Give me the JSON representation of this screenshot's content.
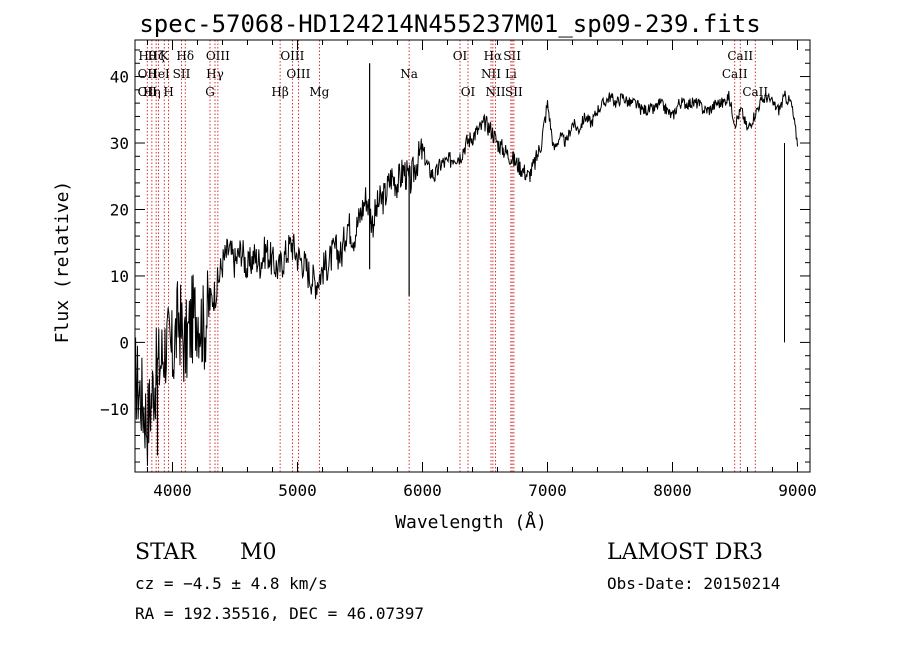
{
  "chart_data": {
    "type": "line",
    "title": "spec-57068-HD124214N455237M01_sp09-239.fits",
    "xlabel": "Wavelength (Å)",
    "ylabel": "Flux (relative)",
    "xlim": [
      3700,
      9100
    ],
    "ylim": [
      -19.5,
      45.5
    ],
    "x_ticks": [
      4000,
      5000,
      6000,
      7000,
      8000,
      9000
    ],
    "x_tick_labels": [
      "4000",
      "5000",
      "6000",
      "7000",
      "8000",
      "9000"
    ],
    "y_ticks": [
      -10,
      0,
      10,
      20,
      30,
      40
    ],
    "y_tick_labels": [
      "−10",
      "0",
      "10",
      "20",
      "30",
      "40"
    ],
    "series": [
      {
        "name": "flux",
        "x": [
          3700,
          3750,
          3800,
          3850,
          3900,
          3950,
          4000,
          4050,
          4100,
          4150,
          4200,
          4250,
          4300,
          4350,
          4400,
          4450,
          4500,
          4550,
          4600,
          4650,
          4700,
          4750,
          4800,
          4850,
          4900,
          4950,
          5000,
          5050,
          5100,
          5150,
          5200,
          5250,
          5300,
          5350,
          5400,
          5450,
          5500,
          5550,
          5600,
          5650,
          5700,
          5750,
          5800,
          5850,
          5900,
          5950,
          6000,
          6050,
          6100,
          6150,
          6200,
          6250,
          6300,
          6350,
          6400,
          6450,
          6500,
          6550,
          6600,
          6650,
          6700,
          6750,
          6800,
          6850,
          6900,
          6950,
          7000,
          7050,
          7100,
          7150,
          7200,
          7250,
          7300,
          7350,
          7400,
          7450,
          7500,
          7550,
          7600,
          7650,
          7700,
          7750,
          7800,
          7850,
          7900,
          7950,
          8000,
          8050,
          8100,
          8150,
          8200,
          8250,
          8300,
          8350,
          8400,
          8450,
          8500,
          8550,
          8600,
          8650,
          8700,
          8750,
          8800,
          8850,
          8900,
          8950,
          9000
        ],
        "y": [
          -5,
          -8,
          -12,
          -6,
          -3,
          0,
          -2,
          4,
          -1,
          3,
          5,
          2,
          6,
          8,
          12,
          14,
          12,
          14,
          11,
          13,
          12,
          14,
          12,
          11,
          13,
          15,
          13,
          12,
          10,
          9,
          11,
          12,
          14,
          13,
          18,
          16,
          19,
          22,
          18,
          21,
          22,
          25,
          24,
          26,
          24,
          27,
          29,
          26,
          25,
          27,
          27,
          28,
          28,
          30,
          31,
          32,
          33,
          32,
          30,
          29,
          28,
          27,
          26,
          25,
          27,
          30,
          36,
          29,
          31,
          30,
          33,
          32,
          34,
          33,
          35,
          36,
          37,
          36,
          37,
          36,
          36,
          35,
          35,
          35,
          36,
          35,
          34,
          36,
          36,
          36,
          36,
          35,
          35,
          36,
          36,
          37,
          33,
          35,
          32,
          34,
          36,
          37,
          36,
          35,
          37,
          36,
          30
        ]
      }
    ],
    "spikes": [
      {
        "x": 5577,
        "y1": 11,
        "y2": 42
      },
      {
        "x": 5893,
        "y1": 7,
        "y2": 26
      },
      {
        "x": 3880,
        "y1": -17,
        "y2": -5
      }
    ],
    "line_markers": [
      {
        "x": 3798,
        "labels": [
          "Hθ",
          "OII",
          "OII"
        ],
        "rows": [
          1,
          2,
          3
        ]
      },
      {
        "x": 3835,
        "labels": [
          "Hη"
        ],
        "rows": [
          3
        ]
      },
      {
        "x": 3869,
        "labels": [
          "Hζ"
        ],
        "rows": [
          1
        ]
      },
      {
        "x": 3889,
        "labels": [
          "HeI"
        ],
        "rows": [
          2
        ]
      },
      {
        "x": 3934,
        "labels": [
          "K"
        ],
        "rows": [
          1
        ]
      },
      {
        "x": 3969,
        "labels": [
          "H"
        ],
        "rows": [
          3
        ]
      },
      {
        "x": 4072,
        "labels": [
          "SII"
        ],
        "rows": [
          2
        ]
      },
      {
        "x": 4102,
        "labels": [
          "Hδ"
        ],
        "rows": [
          1
        ]
      },
      {
        "x": 4300,
        "labels": [
          "G"
        ],
        "rows": [
          3
        ]
      },
      {
        "x": 4340,
        "labels": [
          "Hγ"
        ],
        "rows": [
          2
        ]
      },
      {
        "x": 4363,
        "labels": [
          "OIII"
        ],
        "rows": [
          1
        ]
      },
      {
        "x": 4861,
        "labels": [
          "Hβ"
        ],
        "rows": [
          3
        ]
      },
      {
        "x": 4959,
        "labels": [
          "OIII"
        ],
        "rows": [
          1
        ]
      },
      {
        "x": 5007,
        "labels": [
          "OIII"
        ],
        "rows": [
          2
        ]
      },
      {
        "x": 5175,
        "labels": [
          "Mg"
        ],
        "rows": [
          3
        ]
      },
      {
        "x": 5893,
        "labels": [
          "Na"
        ],
        "rows": [
          2
        ]
      },
      {
        "x": 6300,
        "labels": [
          "OI"
        ],
        "rows": [
          1
        ]
      },
      {
        "x": 6364,
        "labels": [
          "OI"
        ],
        "rows": [
          3
        ]
      },
      {
        "x": 6548,
        "labels": [
          "NII"
        ],
        "rows": [
          2
        ]
      },
      {
        "x": 6563,
        "labels": [
          "Hα"
        ],
        "rows": [
          1
        ]
      },
      {
        "x": 6584,
        "labels": [
          "NII"
        ],
        "rows": [
          3
        ]
      },
      {
        "x": 6707,
        "labels": [
          "Li"
        ],
        "rows": [
          2
        ]
      },
      {
        "x": 6717,
        "labels": [
          "SII"
        ],
        "rows": [
          1
        ]
      },
      {
        "x": 6731,
        "labels": [
          "SII"
        ],
        "rows": [
          3
        ]
      },
      {
        "x": 8498,
        "labels": [
          "CaII"
        ],
        "rows": [
          2
        ]
      },
      {
        "x": 8542,
        "labels": [
          "CaII"
        ],
        "rows": [
          1
        ]
      },
      {
        "x": 8662,
        "labels": [
          "CaII"
        ],
        "rows": [
          3
        ]
      }
    ]
  },
  "info": {
    "object_class": "STAR",
    "subclass": "M0",
    "survey": "LAMOST DR3",
    "cz": "cz = −4.5 ± 4.8 km/s",
    "obs_date": "Obs-Date: 20150214",
    "coords": "RA = 192.35516, DEC =  46.07397"
  },
  "colors": {
    "spectrum": "#000000",
    "marker": "#cc0000",
    "axis": "#000000"
  }
}
